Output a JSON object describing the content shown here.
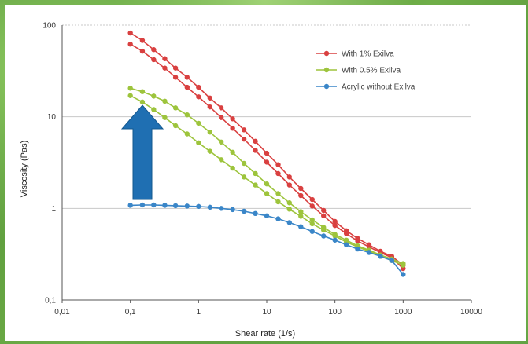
{
  "chart_data": {
    "type": "line",
    "x_scale": "log",
    "y_scale": "log",
    "xlabel": "Shear rate (1/s)",
    "ylabel": "Viscosity (Pas)",
    "xlim": [
      0.01,
      10000
    ],
    "ylim": [
      0.1,
      100
    ],
    "x_ticks": [
      "0,01",
      "0,1",
      "1",
      "10",
      "100",
      "1000",
      "10000"
    ],
    "y_ticks": [
      "100",
      "10",
      "1",
      "0,1"
    ],
    "grid": "horizontal",
    "legend_position": "top-right",
    "annotation": "blue arrow pointing up",
    "series": [
      {
        "name": "With 1% Exilva",
        "color": "#d94040",
        "curves": [
          {
            "x": [
              0.1,
              0.15,
              0.22,
              0.32,
              0.46,
              0.68,
              1,
              1.47,
              2.15,
              3.16,
              4.64,
              6.81,
              10,
              14.7,
              21.5,
              31.6,
              46.4,
              68.1,
              100,
              147,
              215,
              316,
              464,
              681,
              1000
            ],
            "y": [
              82,
              68,
              54,
              43,
              34,
              27,
              21,
              16,
              12.5,
              9.5,
              7.2,
              5.4,
              4.0,
              3.0,
              2.2,
              1.65,
              1.25,
              0.95,
              0.72,
              0.57,
              0.47,
              0.4,
              0.34,
              0.3,
              0.24
            ]
          },
          {
            "x": [
              0.1,
              0.15,
              0.22,
              0.32,
              0.46,
              0.68,
              1,
              1.47,
              2.15,
              3.16,
              4.64,
              6.81,
              10,
              14.7,
              21.5,
              31.6,
              46.4,
              68.1,
              100,
              147,
              215,
              316,
              464,
              681,
              1000
            ],
            "y": [
              62,
              52,
              42,
              34,
              27,
              21,
              16.5,
              12.8,
              9.8,
              7.5,
              5.7,
              4.3,
              3.2,
              2.4,
              1.8,
              1.38,
              1.06,
              0.83,
              0.65,
              0.53,
              0.44,
              0.38,
              0.33,
              0.29,
              0.22
            ]
          }
        ]
      },
      {
        "name": "With 0.5% Exilva",
        "color": "#9dc43c",
        "curves": [
          {
            "x": [
              0.1,
              0.15,
              0.22,
              0.32,
              0.46,
              0.68,
              1,
              1.47,
              2.15,
              3.16,
              4.64,
              6.81,
              10,
              14.7,
              21.5,
              31.6,
              46.4,
              68.1,
              100,
              147,
              215,
              316,
              464,
              681,
              1000
            ],
            "y": [
              20.5,
              18.8,
              16.8,
              14.8,
              12.5,
              10.5,
              8.5,
              6.8,
              5.3,
              4.1,
              3.1,
              2.4,
              1.85,
              1.45,
              1.15,
              0.92,
              0.75,
              0.62,
              0.52,
              0.45,
              0.39,
              0.35,
              0.31,
              0.28,
              0.25
            ]
          },
          {
            "x": [
              0.1,
              0.15,
              0.22,
              0.32,
              0.46,
              0.68,
              1,
              1.47,
              2.15,
              3.16,
              4.64,
              6.81,
              10,
              14.7,
              21.5,
              31.6,
              46.4,
              68.1,
              100,
              147,
              215,
              316,
              464,
              681,
              1000
            ],
            "y": [
              17,
              14.5,
              12,
              9.8,
              8.0,
              6.5,
              5.2,
              4.2,
              3.4,
              2.75,
              2.2,
              1.8,
              1.45,
              1.18,
              0.98,
              0.82,
              0.68,
              0.58,
              0.5,
              0.43,
              0.38,
              0.34,
              0.3,
              0.27,
              0.24
            ]
          }
        ]
      },
      {
        "name": "Acrylic without Exilva",
        "color": "#3a86c8",
        "curves": [
          {
            "x": [
              0.1,
              0.15,
              0.22,
              0.32,
              0.46,
              0.68,
              1,
              1.47,
              2.15,
              3.16,
              4.64,
              6.81,
              10,
              14.7,
              21.5,
              31.6,
              46.4,
              68.1,
              100,
              147,
              215,
              316,
              464,
              681,
              1000
            ],
            "y": [
              1.08,
              1.09,
              1.09,
              1.08,
              1.07,
              1.06,
              1.05,
              1.03,
              1.0,
              0.97,
              0.93,
              0.88,
              0.83,
              0.77,
              0.7,
              0.63,
              0.56,
              0.5,
              0.45,
              0.4,
              0.36,
              0.33,
              0.3,
              0.27,
              0.19
            ]
          }
        ]
      }
    ]
  }
}
